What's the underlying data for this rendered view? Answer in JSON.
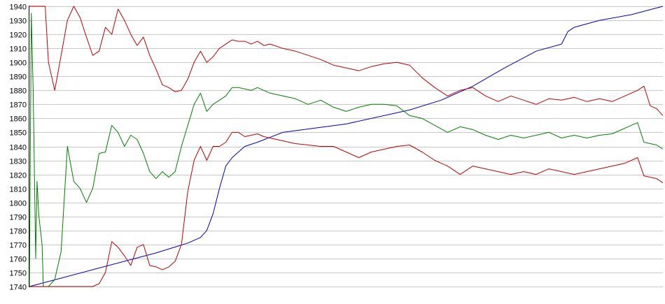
{
  "chart_data": {
    "type": "line",
    "title": "",
    "xlabel": "",
    "ylabel": "",
    "ylim": [
      1740,
      1940
    ],
    "ytick_step": 10,
    "xlim": [
      0,
      100
    ],
    "grid": true,
    "legend": "none",
    "series": [
      {
        "color": "#0000c0",
        "x": [
          0,
          5,
          10,
          15,
          20,
          25,
          27,
          28,
          29,
          30,
          31,
          32,
          34,
          36,
          40,
          50,
          60,
          65,
          70,
          75,
          80,
          84,
          85,
          86,
          90,
          95,
          100
        ],
        "y": [
          1740,
          1746,
          1752,
          1758,
          1764,
          1771,
          1775,
          1780,
          1792,
          1810,
          1826,
          1832,
          1840,
          1843,
          1850,
          1856,
          1866,
          1873,
          1883,
          1896,
          1908,
          1913,
          1922,
          1925,
          1930,
          1934,
          1940
        ]
      },
      {
        "color": "#c00000",
        "x": [
          0,
          2.5,
          3,
          4,
          5,
          6,
          7,
          8,
          9,
          10,
          11,
          12,
          13,
          14,
          15,
          16,
          17,
          18,
          19,
          20,
          21,
          22,
          23,
          24,
          25,
          26,
          27,
          28,
          29,
          30,
          31,
          32,
          33,
          34,
          35,
          36,
          37,
          38,
          40,
          42,
          44,
          46,
          48,
          50,
          52,
          54,
          56,
          58,
          60,
          62,
          64,
          66,
          68,
          70,
          72,
          74,
          76,
          78,
          80,
          82,
          84,
          86,
          88,
          90,
          92,
          94,
          96,
          97,
          98,
          99,
          100
        ],
        "y": [
          1940,
          1940,
          1900,
          1880,
          1905,
          1930,
          1940,
          1932,
          1918,
          1905,
          1908,
          1925,
          1920,
          1938,
          1930,
          1920,
          1912,
          1918,
          1905,
          1895,
          1884,
          1882,
          1879,
          1880,
          1888,
          1900,
          1908,
          1900,
          1904,
          1910,
          1913,
          1916,
          1915,
          1915,
          1913,
          1915,
          1912,
          1913,
          1910,
          1908,
          1905,
          1902,
          1898,
          1896,
          1894,
          1897,
          1899,
          1900,
          1898,
          1889,
          1882,
          1876,
          1880,
          1882,
          1876,
          1872,
          1876,
          1873,
          1870,
          1874,
          1873,
          1875,
          1872,
          1874,
          1872,
          1876,
          1880,
          1883,
          1869,
          1867,
          1862
        ]
      },
      {
        "color": "#008000",
        "x": [
          0,
          0.3,
          0.6,
          1.0,
          1.2,
          1.5,
          2.0,
          2.2,
          2.5,
          3,
          4,
          5,
          6,
          7,
          8,
          9,
          10,
          11,
          12,
          13,
          14,
          15,
          16,
          17,
          18,
          19,
          20,
          21,
          22,
          23,
          24,
          25,
          26,
          27,
          28,
          29,
          30,
          31,
          32,
          33,
          34,
          35,
          36,
          37,
          38,
          40,
          42,
          44,
          46,
          48,
          50,
          52,
          54,
          56,
          58,
          60,
          62,
          64,
          66,
          68,
          70,
          72,
          74,
          76,
          78,
          80,
          82,
          84,
          86,
          88,
          90,
          92,
          94,
          96,
          97,
          98,
          99,
          100
        ],
        "y": [
          1740,
          1935,
          1880,
          1760,
          1815,
          1790,
          1770,
          1740,
          1740,
          1740,
          1745,
          1765,
          1840,
          1815,
          1810,
          1800,
          1810,
          1835,
          1836,
          1855,
          1850,
          1840,
          1848,
          1845,
          1835,
          1822,
          1817,
          1822,
          1818,
          1822,
          1840,
          1855,
          1870,
          1878,
          1865,
          1870,
          1873,
          1876,
          1882,
          1882,
          1881,
          1880,
          1882,
          1880,
          1878,
          1876,
          1874,
          1870,
          1873,
          1868,
          1865,
          1868,
          1870,
          1870,
          1869,
          1862,
          1860,
          1855,
          1850,
          1854,
          1852,
          1848,
          1845,
          1848,
          1846,
          1848,
          1850,
          1846,
          1848,
          1846,
          1848,
          1849,
          1853,
          1857,
          1843,
          1842,
          1841,
          1838
        ]
      },
      {
        "color": "#c00000",
        "x": [
          0,
          5,
          10,
          11,
          12,
          13,
          14,
          15,
          16,
          17,
          18,
          19,
          20,
          21,
          22,
          23,
          24,
          25,
          26,
          27,
          28,
          29,
          30,
          31,
          32,
          33,
          34,
          35,
          36,
          37,
          38,
          40,
          42,
          44,
          46,
          48,
          50,
          52,
          54,
          56,
          58,
          60,
          62,
          64,
          66,
          68,
          70,
          72,
          74,
          76,
          78,
          80,
          82,
          84,
          86,
          88,
          90,
          92,
          94,
          96,
          97,
          98,
          99,
          100
        ],
        "y": [
          1740,
          1740,
          1740,
          1742,
          1750,
          1772,
          1768,
          1762,
          1755,
          1768,
          1770,
          1755,
          1754,
          1752,
          1754,
          1758,
          1770,
          1808,
          1830,
          1840,
          1830,
          1840,
          1840,
          1843,
          1850,
          1850,
          1847,
          1848,
          1849,
          1847,
          1846,
          1844,
          1842,
          1841,
          1840,
          1840,
          1836,
          1832,
          1836,
          1838,
          1840,
          1841,
          1836,
          1830,
          1826,
          1820,
          1826,
          1824,
          1822,
          1820,
          1822,
          1820,
          1824,
          1822,
          1820,
          1822,
          1824,
          1826,
          1828,
          1832,
          1819,
          1818,
          1817,
          1814
        ]
      }
    ]
  }
}
